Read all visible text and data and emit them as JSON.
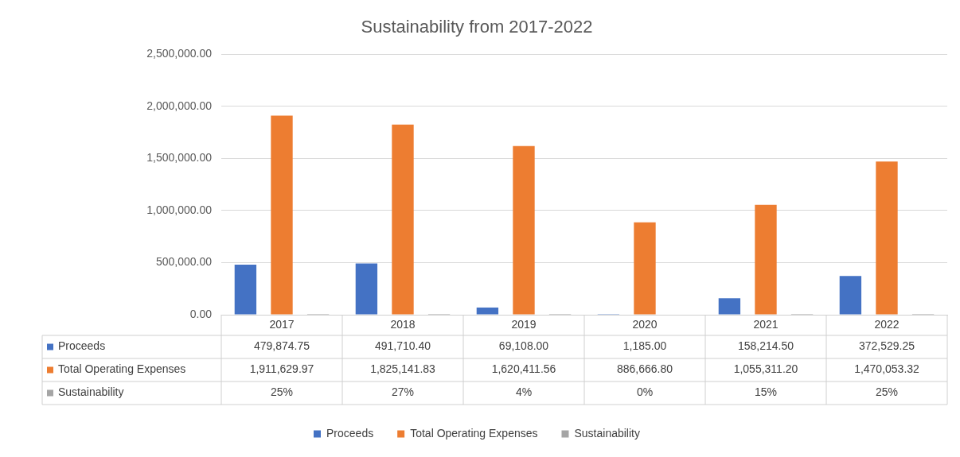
{
  "chart_data": {
    "type": "bar",
    "title": "Sustainability from 2017-2022",
    "categories": [
      "2017",
      "2018",
      "2019",
      "2020",
      "2021",
      "2022"
    ],
    "series": [
      {
        "name": "Proceeds",
        "color": "#4472c4",
        "values": [
          479874.75,
          491710.4,
          69108.0,
          1185.0,
          158214.5,
          372529.25
        ],
        "value_labels": [
          "479,874.75",
          "491,710.40",
          "69,108.00",
          "1,185.00",
          "158,214.50",
          "372,529.25"
        ]
      },
      {
        "name": "Total Operating Expenses",
        "color": "#ed7d31",
        "values": [
          1911629.97,
          1825141.83,
          1620411.56,
          886666.8,
          1055311.2,
          1470053.32
        ],
        "value_labels": [
          "1,911,629.97",
          "1,825,141.83",
          "1,620,411.56",
          "886,666.80",
          "1,055,311.20",
          "1,470,053.32"
        ]
      },
      {
        "name": "Sustainability",
        "color": "#a5a5a5",
        "values": [
          0.25,
          0.27,
          0.04,
          0,
          0.15,
          0.25
        ],
        "value_labels": [
          "25%",
          "27%",
          "4%",
          "0%",
          "15%",
          "25%"
        ]
      }
    ],
    "ylim": [
      0,
      2500000
    ],
    "yticks": [
      {
        "value": 0,
        "label": "0.00"
      },
      {
        "value": 500000,
        "label": "500,000.00"
      },
      {
        "value": 1000000,
        "label": "1,000,000.00"
      },
      {
        "value": 1500000,
        "label": "1,500,000.00"
      },
      {
        "value": 2000000,
        "label": "2,000,000.00"
      },
      {
        "value": 2500000,
        "label": "2,500,000.00"
      }
    ],
    "grid": "y",
    "legend": "bottom"
  }
}
